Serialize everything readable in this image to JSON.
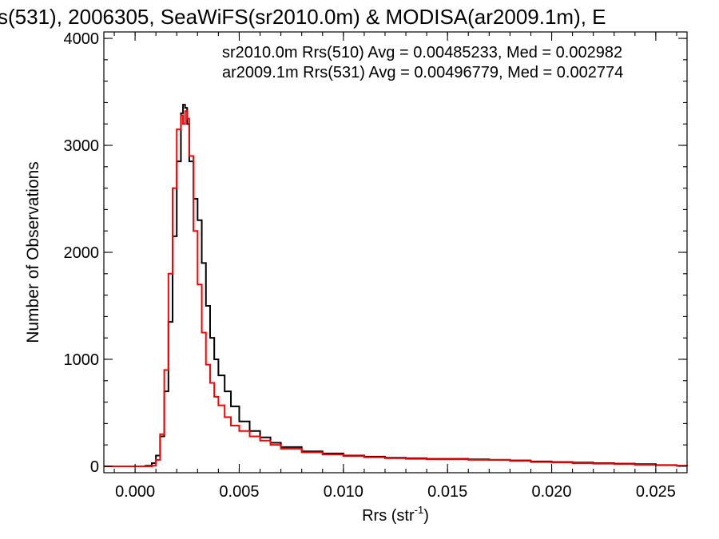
{
  "chart_data": {
    "type": "line",
    "title": "s(531), 2006305, SeaWiFS(sr2010.0m) & MODISA(ar2009.1m), E",
    "xlabel": "Rrs (str",
    "xlabel_sup": "-1",
    "xlabel_close": ")",
    "ylabel": "Number of Observations",
    "xlim": [
      -0.0015,
      0.0265
    ],
    "ylim": [
      -60,
      4060
    ],
    "xticks": [
      0.0,
      0.005,
      0.01,
      0.015,
      0.02,
      0.025
    ],
    "xtick_labels": [
      "0.000",
      "0.005",
      "0.010",
      "0.015",
      "0.020",
      "0.025"
    ],
    "yticks": [
      0,
      1000,
      2000,
      3000,
      4000
    ],
    "ytick_labels": [
      "0",
      "1000",
      "2000",
      "3000",
      "4000"
    ],
    "grid": false,
    "legend": "top-right",
    "annotations": [
      {
        "text": "sr2010.0m Rrs(510) Avg = 0.00485233, Med = 0.002982",
        "color": "#000000"
      },
      {
        "text": "ar2009.1m Rrs(531) Avg = 0.00496779, Med = 0.002774",
        "color": "#ff0000"
      }
    ],
    "series": [
      {
        "color": "#000000",
        "x": [
          -0.0015,
          0.0,
          0.0005,
          0.0008,
          0.001,
          0.0012,
          0.0014,
          0.0016,
          0.0018,
          0.002,
          0.0022,
          0.0023,
          0.0024,
          0.0025,
          0.0026,
          0.0028,
          0.003,
          0.0032,
          0.0034,
          0.0036,
          0.0038,
          0.004,
          0.0043,
          0.0046,
          0.005,
          0.0055,
          0.006,
          0.0065,
          0.007,
          0.008,
          0.009,
          0.01,
          0.011,
          0.012,
          0.013,
          0.014,
          0.015,
          0.016,
          0.017,
          0.018,
          0.019,
          0.02,
          0.021,
          0.022,
          0.023,
          0.024,
          0.025,
          0.026,
          0.0265
        ],
        "y": [
          0,
          0,
          5,
          30,
          100,
          280,
          700,
          1350,
          2150,
          2850,
          3300,
          3380,
          3350,
          3200,
          2850,
          2500,
          2300,
          1900,
          1500,
          1200,
          1000,
          850,
          700,
          560,
          420,
          330,
          270,
          220,
          180,
          140,
          120,
          100,
          90,
          80,
          75,
          70,
          70,
          65,
          60,
          55,
          45,
          40,
          35,
          30,
          25,
          20,
          12,
          5,
          3
        ]
      },
      {
        "color": "#ff0000",
        "x": [
          -0.0015,
          0.0,
          0.0008,
          0.001,
          0.0012,
          0.0014,
          0.0016,
          0.0018,
          0.002,
          0.0022,
          0.0023,
          0.0024,
          0.0025,
          0.0026,
          0.0028,
          0.003,
          0.0032,
          0.0034,
          0.0036,
          0.0038,
          0.004,
          0.0043,
          0.0046,
          0.005,
          0.0055,
          0.006,
          0.0065,
          0.007,
          0.008,
          0.009,
          0.01,
          0.011,
          0.012,
          0.013,
          0.014,
          0.015,
          0.016,
          0.017,
          0.018,
          0.019,
          0.02,
          0.021,
          0.022,
          0.023,
          0.024,
          0.025,
          0.026,
          0.0265
        ],
        "y": [
          0,
          0,
          5,
          60,
          300,
          900,
          1800,
          2600,
          3150,
          3280,
          3200,
          3320,
          3250,
          2900,
          2200,
          1700,
          1250,
          950,
          780,
          650,
          570,
          460,
          380,
          330,
          280,
          240,
          200,
          165,
          130,
          110,
          95,
          85,
          75,
          70,
          65,
          65,
          60,
          60,
          50,
          40,
          35,
          30,
          25,
          20,
          15,
          10,
          4,
          2
        ]
      }
    ]
  }
}
